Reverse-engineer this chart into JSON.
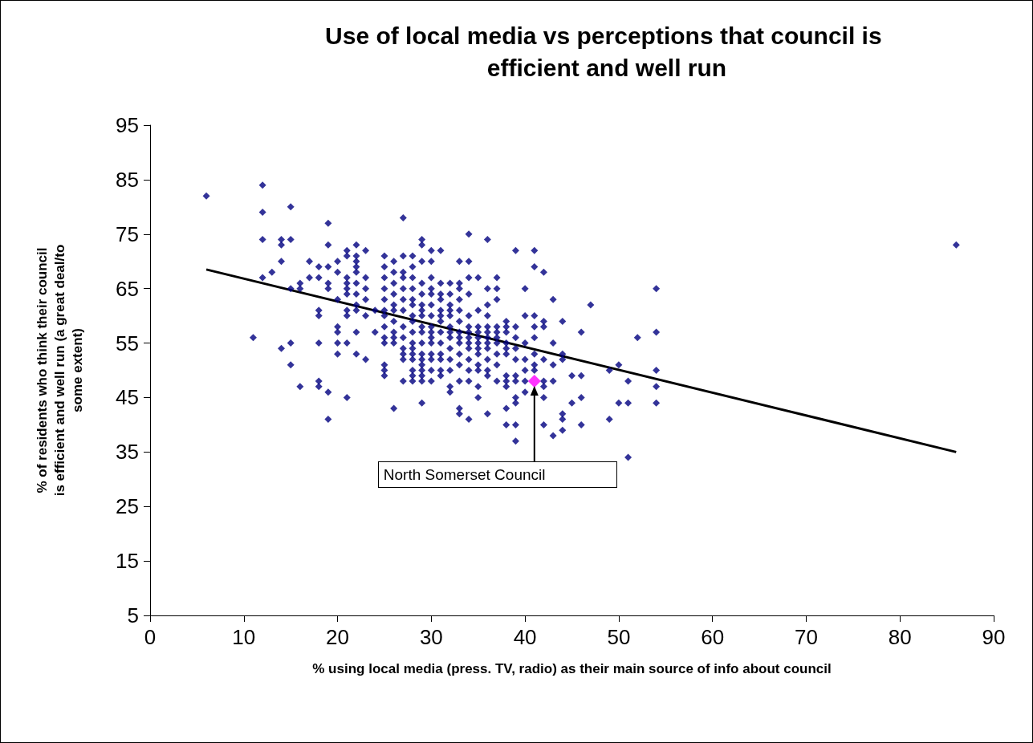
{
  "chart_data": {
    "type": "scatter",
    "title": "Use of local media vs perceptions that council is efficient and well run",
    "xlabel": "% using local media (press. TV, radio) as their main source of info about council",
    "ylabel": "% of residents who think their council is efficient and well run (a great deal/to some extent)",
    "xlim": [
      0,
      90
    ],
    "xticks": [
      0,
      10,
      20,
      30,
      40,
      50,
      60,
      70,
      80,
      90
    ],
    "ylim": [
      5,
      95
    ],
    "yticks": [
      5,
      15,
      25,
      35,
      45,
      55,
      65,
      75,
      85,
      95
    ],
    "grid": false,
    "marker": "diamond",
    "annotations": [
      {
        "text": "North Somerset Council",
        "x": 41,
        "y": 48
      }
    ],
    "series": [
      {
        "color": "#000080",
        "x": [
          6,
          11,
          12,
          12,
          12,
          12,
          13,
          14,
          14,
          14,
          14,
          15,
          15,
          15,
          15,
          15,
          16,
          16,
          16,
          17,
          17,
          18,
          18,
          18,
          18,
          18,
          18,
          18,
          19,
          19,
          19,
          19,
          19,
          19,
          19,
          20,
          20,
          20,
          20,
          20,
          20,
          20,
          21,
          21,
          21,
          21,
          21,
          21,
          21,
          21,
          21,
          21,
          22,
          22,
          22,
          22,
          22,
          22,
          22,
          22,
          22,
          22,
          22,
          23,
          23,
          23,
          23,
          23,
          23,
          24,
          24,
          25,
          25,
          25,
          25,
          25,
          25,
          25,
          25,
          25,
          25,
          25,
          25,
          25,
          26,
          26,
          26,
          26,
          26,
          26,
          26,
          26,
          26,
          26,
          26,
          27,
          27,
          27,
          27,
          27,
          27,
          27,
          27,
          27,
          27,
          27,
          27,
          27,
          28,
          28,
          28,
          28,
          28,
          28,
          28,
          28,
          28,
          28,
          28,
          28,
          28,
          28,
          28,
          28,
          29,
          29,
          29,
          29,
          29,
          29,
          29,
          29,
          29,
          29,
          29,
          29,
          29,
          29,
          29,
          29,
          29,
          29,
          30,
          30,
          30,
          30,
          30,
          30,
          30,
          30,
          30,
          30,
          30,
          30,
          30,
          30,
          30,
          31,
          31,
          31,
          31,
          31,
          31,
          31,
          31,
          31,
          31,
          31,
          31,
          31,
          32,
          32,
          32,
          32,
          32,
          32,
          32,
          32,
          32,
          32,
          32,
          32,
          32,
          33,
          33,
          33,
          33,
          33,
          33,
          33,
          33,
          33,
          33,
          33,
          33,
          33,
          33,
          34,
          34,
          34,
          34,
          34,
          34,
          34,
          34,
          34,
          34,
          34,
          34,
          34,
          34,
          35,
          35,
          35,
          35,
          35,
          35,
          35,
          35,
          35,
          35,
          35,
          35,
          36,
          36,
          36,
          36,
          36,
          36,
          36,
          36,
          36,
          36,
          36,
          36,
          36,
          37,
          37,
          37,
          37,
          37,
          37,
          37,
          37,
          37,
          37,
          38,
          38,
          38,
          38,
          38,
          38,
          38,
          38,
          38,
          38,
          38,
          39,
          39,
          39,
          39,
          39,
          39,
          39,
          39,
          39,
          39,
          39,
          40,
          40,
          40,
          40,
          40,
          40,
          40,
          41,
          41,
          41,
          41,
          41,
          41,
          41,
          41,
          42,
          42,
          42,
          42,
          42,
          42,
          42,
          42,
          43,
          43,
          43,
          43,
          43,
          44,
          44,
          44,
          44,
          44,
          44,
          45,
          45,
          46,
          46,
          46,
          46,
          47,
          49,
          49,
          50,
          50,
          51,
          51,
          51,
          52,
          54,
          54,
          54,
          54,
          54,
          86
        ],
        "values": [
          82,
          56,
          84,
          79,
          74,
          67,
          68,
          74,
          73,
          70,
          54,
          80,
          74,
          65,
          55,
          51,
          66,
          65,
          47,
          70,
          67,
          69,
          67,
          61,
          60,
          55,
          48,
          47,
          77,
          73,
          69,
          66,
          65,
          46,
          41,
          70,
          68,
          63,
          58,
          57,
          55,
          53,
          72,
          71,
          67,
          66,
          65,
          64,
          61,
          60,
          55,
          45,
          73,
          71,
          70,
          69,
          68,
          66,
          64,
          62,
          61,
          57,
          53,
          72,
          67,
          65,
          63,
          60,
          52,
          61,
          57,
          71,
          69,
          67,
          65,
          63,
          61,
          60,
          58,
          56,
          55,
          51,
          50,
          49,
          70,
          68,
          66,
          64,
          62,
          61,
          59,
          57,
          56,
          55,
          43,
          78,
          71,
          68,
          67,
          65,
          63,
          61,
          58,
          56,
          54,
          53,
          52,
          48,
          71,
          69,
          67,
          65,
          63,
          62,
          60,
          59,
          57,
          55,
          54,
          53,
          52,
          50,
          49,
          48,
          74,
          73,
          70,
          66,
          64,
          62,
          61,
          60,
          58,
          57,
          55,
          53,
          52,
          51,
          50,
          49,
          48,
          44,
          72,
          70,
          67,
          65,
          64,
          62,
          60,
          58,
          57,
          56,
          55,
          53,
          52,
          50,
          48,
          72,
          66,
          64,
          63,
          61,
          60,
          59,
          57,
          55,
          53,
          52,
          50,
          49,
          66,
          64,
          62,
          61,
          60,
          58,
          57,
          56,
          54,
          52,
          50,
          47,
          46,
          70,
          66,
          65,
          63,
          61,
          59,
          57,
          56,
          55,
          53,
          51,
          48,
          43,
          42,
          75,
          70,
          67,
          64,
          60,
          58,
          57,
          56,
          55,
          54,
          52,
          50,
          48,
          41,
          67,
          61,
          58,
          57,
          56,
          55,
          54,
          53,
          51,
          50,
          47,
          45,
          74,
          65,
          62,
          60,
          58,
          57,
          56,
          55,
          54,
          52,
          50,
          49,
          42,
          67,
          65,
          63,
          58,
          57,
          56,
          55,
          53,
          51,
          48,
          59,
          58,
          57,
          55,
          54,
          53,
          49,
          48,
          47,
          43,
          40,
          72,
          58,
          56,
          54,
          52,
          49,
          48,
          45,
          44,
          40,
          37,
          65,
          60,
          55,
          52,
          50,
          48,
          46,
          72,
          69,
          60,
          58,
          56,
          53,
          51,
          50,
          68,
          59,
          58,
          52,
          48,
          47,
          45,
          40,
          63,
          55,
          51,
          48,
          38,
          59,
          53,
          52,
          42,
          41,
          39,
          49,
          44,
          57,
          49,
          45,
          40,
          62,
          50,
          41,
          51,
          44,
          48,
          44,
          34,
          56,
          65,
          57,
          50,
          47,
          44,
          73
        ]
      },
      {
        "color": "#ff00ff",
        "x": [
          41
        ],
        "values": [
          48
        ]
      },
      {
        "type": "line",
        "color": "#000000",
        "marker": "none",
        "x": [
          6,
          86
        ],
        "values": [
          68.5,
          35
        ]
      }
    ]
  }
}
